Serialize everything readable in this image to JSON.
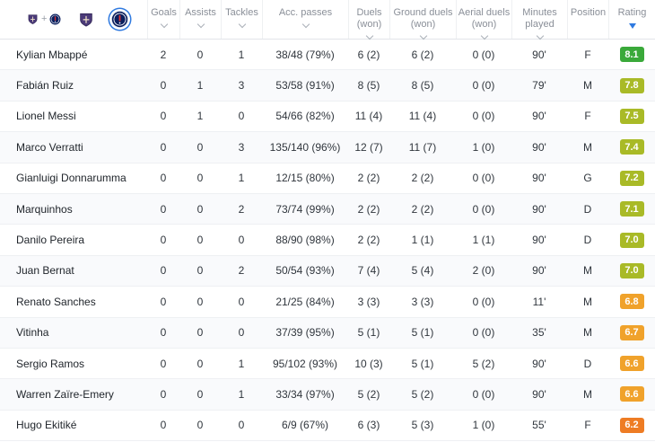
{
  "accent": {
    "blue": "#2f7ae0"
  },
  "icons": {
    "sort": "chevron-down",
    "active_sort": "triangle-down",
    "home_team": "toulouse-crest",
    "away_team": "psg-crest"
  },
  "team_filter": {
    "plus": "+",
    "options": [
      {
        "id": "both-teams",
        "selected": false
      },
      {
        "id": "toulouse",
        "selected": false
      },
      {
        "id": "psg",
        "selected": true
      }
    ]
  },
  "table": {
    "columns": [
      {
        "id": "goals",
        "label": "Goals",
        "sortable": true,
        "active_sort": false
      },
      {
        "id": "assists",
        "label": "Assists",
        "sortable": true,
        "active_sort": false
      },
      {
        "id": "tackles",
        "label": "Tackles",
        "sortable": true,
        "active_sort": false
      },
      {
        "id": "acc-passes",
        "label": "Acc. passes",
        "sortable": true,
        "active_sort": false
      },
      {
        "id": "duels",
        "label": "Duels",
        "sub": "(won)",
        "sortable": true,
        "active_sort": false
      },
      {
        "id": "ground-duels",
        "label": "Ground duels",
        "sub": "(won)",
        "sortable": true,
        "active_sort": false
      },
      {
        "id": "aerial-duels",
        "label": "Aerial duels",
        "sub": "(won)",
        "sortable": true,
        "active_sort": false
      },
      {
        "id": "minutes",
        "label": "Minutes",
        "sub": "played",
        "sortable": true,
        "active_sort": false
      },
      {
        "id": "position",
        "label": "Position",
        "sortable": false,
        "active_sort": false
      },
      {
        "id": "rating",
        "label": "Rating",
        "sortable": true,
        "active_sort": true
      }
    ],
    "players": [
      {
        "name": "Kylian Mbappé",
        "goals": "2",
        "assists": "0",
        "tackles": "1",
        "acc_passes": "38/48 (79%)",
        "duels": "6 (2)",
        "ground_duels": "6 (2)",
        "aerial_duels": "0 (0)",
        "minutes": "90'",
        "position": "F",
        "rating": "8.1",
        "rating_color": "#3aa93a"
      },
      {
        "name": "Fabián Ruiz",
        "goals": "0",
        "assists": "1",
        "tackles": "3",
        "acc_passes": "53/58 (91%)",
        "duels": "8 (5)",
        "ground_duels": "8 (5)",
        "aerial_duels": "0 (0)",
        "minutes": "79'",
        "position": "M",
        "rating": "7.8",
        "rating_color": "#a9ba27"
      },
      {
        "name": "Lionel Messi",
        "goals": "0",
        "assists": "1",
        "tackles": "0",
        "acc_passes": "54/66 (82%)",
        "duels": "11 (4)",
        "ground_duels": "11 (4)",
        "aerial_duels": "0 (0)",
        "minutes": "90'",
        "position": "F",
        "rating": "7.5",
        "rating_color": "#a9ba27"
      },
      {
        "name": "Marco Verratti",
        "goals": "0",
        "assists": "0",
        "tackles": "3",
        "acc_passes": "135/140 (96%)",
        "duels": "12 (7)",
        "ground_duels": "11 (7)",
        "aerial_duels": "1 (0)",
        "minutes": "90'",
        "position": "M",
        "rating": "7.4",
        "rating_color": "#a9ba27"
      },
      {
        "name": "Gianluigi Donnarumma",
        "goals": "0",
        "assists": "0",
        "tackles": "1",
        "acc_passes": "12/15 (80%)",
        "duels": "2 (2)",
        "ground_duels": "2 (2)",
        "aerial_duels": "0 (0)",
        "minutes": "90'",
        "position": "G",
        "rating": "7.2",
        "rating_color": "#a9ba27"
      },
      {
        "name": "Marquinhos",
        "goals": "0",
        "assists": "0",
        "tackles": "2",
        "acc_passes": "73/74 (99%)",
        "duels": "2 (2)",
        "ground_duels": "2 (2)",
        "aerial_duels": "0 (0)",
        "minutes": "90'",
        "position": "D",
        "rating": "7.1",
        "rating_color": "#a9ba27"
      },
      {
        "name": "Danilo Pereira",
        "goals": "0",
        "assists": "0",
        "tackles": "0",
        "acc_passes": "88/90 (98%)",
        "duels": "2 (2)",
        "ground_duels": "1 (1)",
        "aerial_duels": "1 (1)",
        "minutes": "90'",
        "position": "D",
        "rating": "7.0",
        "rating_color": "#a9ba27"
      },
      {
        "name": "Juan Bernat",
        "goals": "0",
        "assists": "0",
        "tackles": "2",
        "acc_passes": "50/54 (93%)",
        "duels": "7 (4)",
        "ground_duels": "5 (4)",
        "aerial_duels": "2 (0)",
        "minutes": "90'",
        "position": "M",
        "rating": "7.0",
        "rating_color": "#a9ba27"
      },
      {
        "name": "Renato Sanches",
        "goals": "0",
        "assists": "0",
        "tackles": "0",
        "acc_passes": "21/25 (84%)",
        "duels": "3 (3)",
        "ground_duels": "3 (3)",
        "aerial_duels": "0 (0)",
        "minutes": "11'",
        "position": "M",
        "rating": "6.8",
        "rating_color": "#f0a22b"
      },
      {
        "name": "Vitinha",
        "goals": "0",
        "assists": "0",
        "tackles": "0",
        "acc_passes": "37/39 (95%)",
        "duels": "5 (1)",
        "ground_duels": "5 (1)",
        "aerial_duels": "0 (0)",
        "minutes": "35'",
        "position": "M",
        "rating": "6.7",
        "rating_color": "#f0a22b"
      },
      {
        "name": "Sergio Ramos",
        "goals": "0",
        "assists": "0",
        "tackles": "1",
        "acc_passes": "95/102 (93%)",
        "duels": "10 (3)",
        "ground_duels": "5 (1)",
        "aerial_duels": "5 (2)",
        "minutes": "90'",
        "position": "D",
        "rating": "6.6",
        "rating_color": "#f0a22b"
      },
      {
        "name": "Warren Zaïre-Emery",
        "goals": "0",
        "assists": "0",
        "tackles": "1",
        "acc_passes": "33/34 (97%)",
        "duels": "5 (2)",
        "ground_duels": "5 (2)",
        "aerial_duels": "0 (0)",
        "minutes": "90'",
        "position": "M",
        "rating": "6.6",
        "rating_color": "#f0a22b"
      },
      {
        "name": "Hugo Ekitiké",
        "goals": "0",
        "assists": "0",
        "tackles": "0",
        "acc_passes": "6/9 (67%)",
        "duels": "6 (3)",
        "ground_duels": "5 (3)",
        "aerial_duels": "1 (0)",
        "minutes": "55'",
        "position": "F",
        "rating": "6.2",
        "rating_color": "#ee7c24"
      }
    ]
  }
}
